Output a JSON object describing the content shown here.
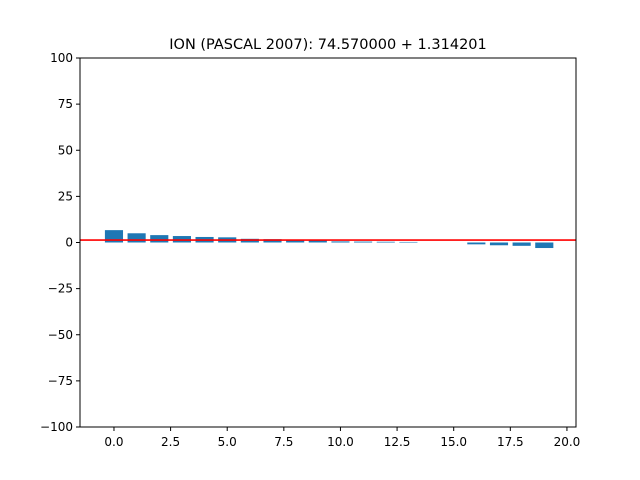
{
  "chart_data": {
    "type": "bar",
    "title": "ION (PASCAL 2007): 74.570000 + 1.314201",
    "xlabel": "",
    "ylabel": "",
    "x": [
      0,
      1,
      2,
      3,
      4,
      5,
      6,
      7,
      8,
      9,
      10,
      11,
      12,
      13,
      14,
      15,
      16,
      17,
      18,
      19
    ],
    "values": [
      6.7,
      5.0,
      4.0,
      3.5,
      3.0,
      2.8,
      2.0,
      1.8,
      1.6,
      1.4,
      0.6,
      0.5,
      0.4,
      0.3,
      0.0,
      0.0,
      -1.0,
      -1.5,
      -1.8,
      -3.0
    ],
    "bar_color": "#1f77b4",
    "reference_line": {
      "value": 1.314201,
      "color": "#ff0000"
    },
    "xlim": [
      -1.5,
      20.4
    ],
    "ylim": [
      -100,
      100
    ],
    "xticks": [
      0.0,
      2.5,
      5.0,
      7.5,
      10.0,
      12.5,
      15.0,
      17.5,
      20.0
    ],
    "xtick_labels": [
      "0.0",
      "2.5",
      "5.0",
      "7.5",
      "10.0",
      "12.5",
      "15.0",
      "17.5",
      "20.0"
    ],
    "yticks": [
      100,
      75,
      50,
      25,
      0,
      -25,
      -50,
      -75,
      -100
    ],
    "ytick_labels": [
      "100",
      "75",
      "50",
      "25",
      "0",
      "−25",
      "−50",
      "−75",
      "−100"
    ],
    "grid": false,
    "legend": "none"
  }
}
